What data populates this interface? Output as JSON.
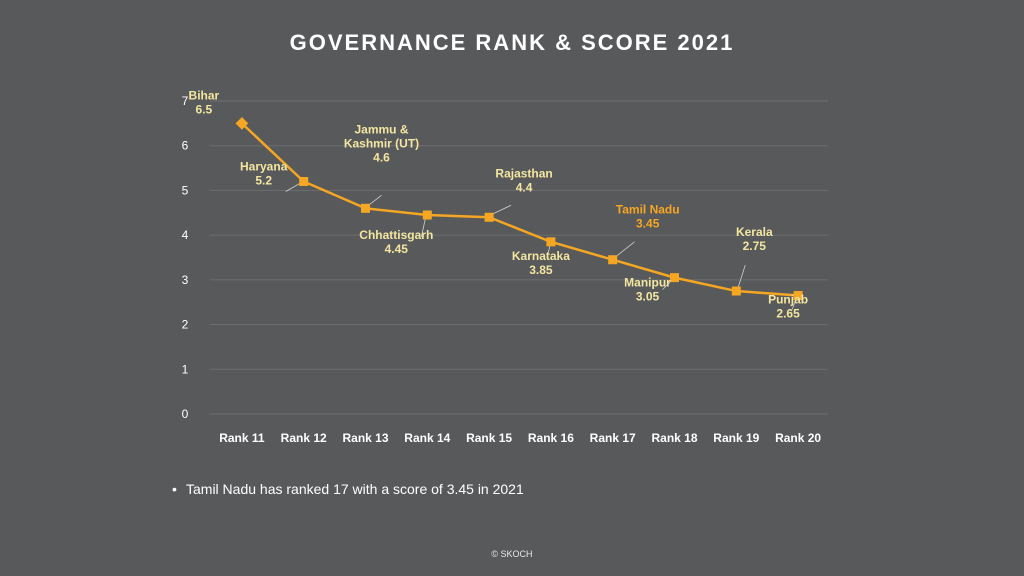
{
  "chart_data": {
    "type": "line",
    "title": "GOVERNANCE RANK & SCORE 2021",
    "categories": [
      "Rank 11",
      "Rank 12",
      "Rank 13",
      "Rank 14",
      "Rank 15",
      "Rank 16",
      "Rank 17",
      "Rank 18",
      "Rank 19",
      "Rank 20"
    ],
    "ylim": [
      0,
      7
    ],
    "yticks": [
      "0",
      "1",
      "2",
      "3",
      "4",
      "5",
      "6",
      "7"
    ],
    "grid": true,
    "series": [
      {
        "values": [
          6.5,
          5.2,
          4.6,
          4.45,
          4.4,
          3.85,
          3.45,
          3.05,
          2.75,
          2.65
        ],
        "labels": [
          {
            "name": [
              "Bihar"
            ],
            "value": "6.5"
          },
          {
            "name": [
              "Haryana"
            ],
            "value": "5.2"
          },
          {
            "name": [
              "Jammu &",
              "Kashmir (UT)"
            ],
            "value": "4.6"
          },
          {
            "name": [
              "Chhattisgarh"
            ],
            "value": "4.45"
          },
          {
            "name": [
              "Rajasthan"
            ],
            "value": "4.4"
          },
          {
            "name": [
              "Karnataka"
            ],
            "value": "3.85"
          },
          {
            "name": [
              "Tamil Nadu"
            ],
            "value": "3.45"
          },
          {
            "name": [
              "Manipur"
            ],
            "value": "3.05"
          },
          {
            "name": [
              "Kerala"
            ],
            "value": "2.75"
          },
          {
            "name": [
              "Punjab"
            ],
            "value": "2.65"
          }
        ]
      }
    ],
    "highlight_category": "Rank 17"
  },
  "colors": {
    "background": "#58595b",
    "line": "#f5a623",
    "label": "#f2e6a0",
    "highlight_label": "#f5a623",
    "grid": "#6d6e70"
  },
  "note": "Tamil Nadu has ranked 17 with a score of 3.45 in 2021",
  "bullet": "•",
  "copyright": "© SKOCH"
}
